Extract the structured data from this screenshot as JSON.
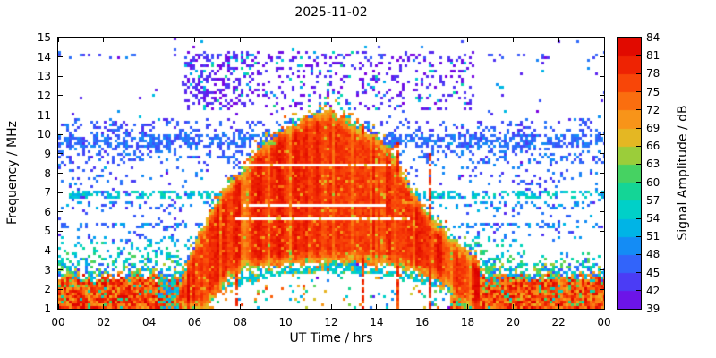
{
  "chart_data": {
    "type": "heatmap",
    "title": "2025-11-02",
    "xlabel": "UT Time / hrs",
    "ylabel": "Frequency / MHz",
    "x_range": [
      0,
      24
    ],
    "y_range": [
      1,
      15
    ],
    "x_tick_labels": [
      "00",
      "02",
      "04",
      "06",
      "08",
      "10",
      "12",
      "14",
      "16",
      "18",
      "20",
      "22",
      "00"
    ],
    "y_tick_values": [
      1,
      2,
      3,
      4,
      5,
      6,
      7,
      8,
      9,
      10,
      11,
      12,
      13,
      14,
      15
    ],
    "colorbar": {
      "label": "Signal Amplitude / dB",
      "min": 39,
      "max": 84,
      "tick_values": [
        39,
        42,
        45,
        48,
        51,
        54,
        57,
        60,
        63,
        66,
        69,
        72,
        75,
        78,
        81,
        84
      ]
    },
    "colormap": [
      {
        "db": 39,
        "color": "#7d00e0"
      },
      {
        "db": 42,
        "color": "#5a28f0"
      },
      {
        "db": 45,
        "color": "#3c50fa"
      },
      {
        "db": 48,
        "color": "#2878fa"
      },
      {
        "db": 51,
        "color": "#00a0f0"
      },
      {
        "db": 54,
        "color": "#00c8dc"
      },
      {
        "db": 57,
        "color": "#00d7b4"
      },
      {
        "db": 60,
        "color": "#28d278"
      },
      {
        "db": 63,
        "color": "#64d24b"
      },
      {
        "db": 66,
        "color": "#d2c828"
      },
      {
        "db": 69,
        "color": "#f5a51e"
      },
      {
        "db": 72,
        "color": "#fa8214"
      },
      {
        "db": 75,
        "color": "#fa5a0a"
      },
      {
        "db": 78,
        "color": "#f53205"
      },
      {
        "db": 81,
        "color": "#e61400"
      },
      {
        "db": 84,
        "color": "#dc0000"
      }
    ],
    "description": "24-hour HF spectrogram for 2025-11-02: high-amplitude (red, 78-84 dB) daytime ionospheric propagation hump from ~05:30 to ~18:00 UT peaking near 11 MHz around 11:30-12:00 UT; broadband nighttime signal below ~3 MHz; persistent speckled noise bands near 5.3, 6.9 and 9.5 MHz; sparse violet-level noise at 11.5-14 MHz during daylight; white signal-free horizontal gaps near 5.65, 6.3 and 8.35 MHz inside the daytime hump; cyan arc near 2-3 MHz around midday.",
    "features": {
      "seed": 20251102,
      "daytime_hump": {
        "t_range": [
          5.0,
          18.5
        ],
        "top_envelope": [
          [
            5.0,
            1.0
          ],
          [
            5.5,
            2.6
          ],
          [
            6.0,
            4.3
          ],
          [
            6.5,
            5.5
          ],
          [
            7.0,
            6.6
          ],
          [
            7.5,
            7.4
          ],
          [
            8.0,
            8.1
          ],
          [
            8.5,
            8.8
          ],
          [
            9.0,
            9.4
          ],
          [
            9.5,
            9.9
          ],
          [
            10.0,
            10.3
          ],
          [
            10.5,
            10.6
          ],
          [
            11.0,
            10.9
          ],
          [
            11.5,
            11.2
          ],
          [
            12.0,
            11.1
          ],
          [
            12.5,
            10.8
          ],
          [
            13.0,
            10.4
          ],
          [
            13.5,
            10.1
          ],
          [
            14.0,
            9.8
          ],
          [
            14.5,
            9.2
          ],
          [
            15.0,
            8.2
          ],
          [
            15.5,
            7.1
          ],
          [
            16.0,
            6.2
          ],
          [
            16.5,
            5.4
          ],
          [
            17.0,
            4.9
          ],
          [
            17.5,
            4.4
          ],
          [
            18.0,
            3.9
          ],
          [
            18.5,
            3.3
          ]
        ],
        "bottom_envelope": [
          [
            5.0,
            1.0
          ],
          [
            6.5,
            1.0
          ],
          [
            7.0,
            1.9
          ],
          [
            7.5,
            2.6
          ],
          [
            8.0,
            3.0
          ],
          [
            9.0,
            3.2
          ],
          [
            10.0,
            3.3
          ],
          [
            11.0,
            3.4
          ],
          [
            12.0,
            3.4
          ],
          [
            13.0,
            3.4
          ],
          [
            14.0,
            3.3
          ],
          [
            15.0,
            3.1
          ],
          [
            16.0,
            2.8
          ],
          [
            16.5,
            2.6
          ],
          [
            17.0,
            2.2
          ],
          [
            17.5,
            1.4
          ],
          [
            18.0,
            1.0
          ],
          [
            18.5,
            1.0
          ]
        ]
      },
      "night_band": {
        "solid_top_mhz": 2.6,
        "fringe_top_mhz": 4.0,
        "day_gap": [
          6.3,
          17.2
        ],
        "weak_interval": [
          4.4,
          5.5
        ]
      },
      "cyan_arc": {
        "t_range": [
          7.2,
          16.8
        ],
        "peak_t": 12.0,
        "peak_f": 3.05,
        "edge_f": 2.15,
        "amp": [
          51,
          58
        ]
      },
      "white_lines": [
        {
          "f": 8.35,
          "t1": 7.9,
          "t2": 14.6
        },
        {
          "f": 6.3,
          "t1": 8.1,
          "t2": 14.4
        },
        {
          "f": 5.65,
          "t1": 7.8,
          "t2": 15.4
        }
      ],
      "purple_scatter": {
        "t_range": [
          5.4,
          18.2
        ],
        "f_range": [
          11.3,
          14.3
        ],
        "density": 0.16,
        "amp": [
          39,
          44
        ],
        "dense_block": {
          "t_range": [
            5.5,
            8.6
          ],
          "f_range": [
            11.4,
            14.2
          ],
          "density": 0.38
        },
        "cyan_fraction": 0.13,
        "cyan_amp": [
          51,
          59
        ]
      },
      "horizontal_bands": [
        {
          "f": [
            9.35,
            9.95
          ],
          "density": 0.55,
          "amp": [
            44,
            50
          ]
        },
        {
          "f": [
            8.55,
            9.3
          ],
          "density": 0.16,
          "amp": [
            44,
            50
          ]
        },
        {
          "f": [
            10.0,
            10.65
          ],
          "density": 0.14,
          "amp": [
            42,
            48
          ]
        },
        {
          "f": [
            6.75,
            7.15
          ],
          "density": 0.5,
          "amp": [
            51,
            58
          ]
        },
        {
          "f": [
            6.15,
            6.55
          ],
          "density": 0.18,
          "amp": [
            46,
            53
          ]
        },
        {
          "f": [
            5.15,
            5.5
          ],
          "density": 0.3,
          "amp": [
            45,
            53
          ]
        },
        {
          "f": [
            4.4,
            4.75
          ],
          "density": 0.12,
          "amp": [
            48,
            56
          ]
        },
        {
          "f": [
            13.9,
            14.15
          ],
          "density": 0.1,
          "amp": [
            43,
            48
          ]
        }
      ],
      "background_noise": [
        {
          "f": [
            1.0,
            15.0
          ],
          "density": 0.012,
          "amp": [
            39,
            54
          ]
        },
        {
          "f": [
            7.4,
            10.8
          ],
          "density": 0.05,
          "amp": [
            42,
            50
          ]
        },
        {
          "f": [
            3.2,
            4.3
          ],
          "density": 0.04,
          "amp": [
            50,
            60
          ]
        }
      ],
      "extra_patches": [
        {
          "t": [
            17.8,
            21.0
          ],
          "f": [
            3.0,
            4.6
          ],
          "density": 0.45,
          "fade_along_t": true,
          "amp": [
            52,
            62
          ]
        },
        {
          "t": [
            0.0,
            5.6
          ],
          "f": [
            4.3,
            10.8
          ],
          "density": 0.08,
          "fade_along_t": false,
          "amp": [
            42,
            50
          ]
        },
        {
          "t": [
            17.5,
            24.0
          ],
          "f": [
            4.6,
            10.8
          ],
          "density": 0.06,
          "fade_along_t": false,
          "amp": [
            42,
            50
          ]
        },
        {
          "t": [
            0.0,
            5.6
          ],
          "f": [
            3.2,
            4.4
          ],
          "density": 0.15,
          "fade_along_t": false,
          "amp": [
            50,
            60
          ]
        },
        {
          "t": [
            7.0,
            17.0
          ],
          "f": [
            1.0,
            2.2
          ],
          "density": 0.05,
          "fade_along_t": false,
          "amp": [
            62,
            78
          ]
        },
        {
          "t": [
            7.0,
            17.0
          ],
          "f": [
            1.0,
            2.6
          ],
          "density": 0.04,
          "fade_along_t": false,
          "amp": [
            48,
            60
          ]
        }
      ],
      "vertical_streaks": [
        {
          "t": 7.8,
          "f": [
            1.0,
            3.0
          ]
        },
        {
          "t": 13.4,
          "f": [
            1.0,
            10.4
          ]
        },
        {
          "t": 14.85,
          "f": [
            1.0,
            9.6
          ]
        },
        {
          "t": 16.3,
          "f": [
            1.0,
            9.2
          ]
        }
      ]
    }
  }
}
